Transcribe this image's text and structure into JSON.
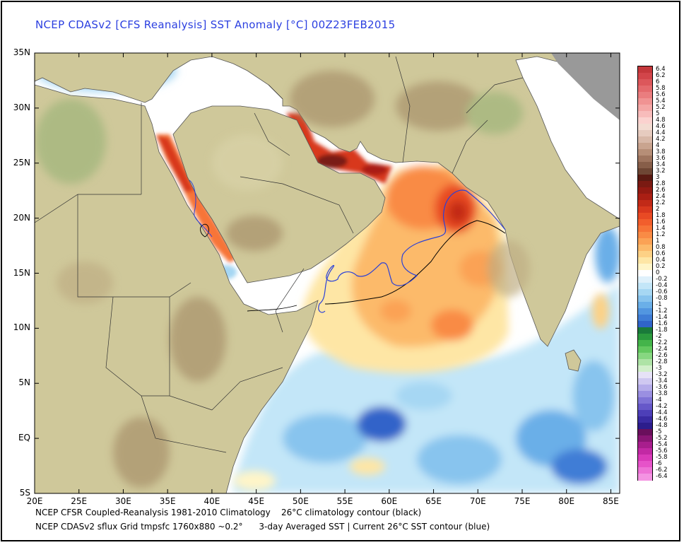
{
  "title": "NCEP CDASv2 [CFS Reanalysis] SST Anomaly [°C] 00Z23FEB2015",
  "map": {
    "lon_range": [
      20,
      86
    ],
    "lat_range": [
      -5,
      35
    ],
    "lat_ticks": [
      {
        "value": 35,
        "label": "35N"
      },
      {
        "value": 30,
        "label": "30N"
      },
      {
        "value": 25,
        "label": "25N"
      },
      {
        "value": 20,
        "label": "20N"
      },
      {
        "value": 15,
        "label": "15N"
      },
      {
        "value": 10,
        "label": "10N"
      },
      {
        "value": 5,
        "label": "5N"
      },
      {
        "value": 0,
        "label": "EQ"
      },
      {
        "value": -5,
        "label": "5S"
      }
    ],
    "lon_ticks": [
      {
        "value": 20,
        "label": "20E"
      },
      {
        "value": 25,
        "label": "25E"
      },
      {
        "value": 30,
        "label": "30E"
      },
      {
        "value": 35,
        "label": "35E"
      },
      {
        "value": 40,
        "label": "40E"
      },
      {
        "value": 45,
        "label": "45E"
      },
      {
        "value": 50,
        "label": "50E"
      },
      {
        "value": 55,
        "label": "55E"
      },
      {
        "value": 60,
        "label": "60E"
      },
      {
        "value": 65,
        "label": "65E"
      },
      {
        "value": 70,
        "label": "70E"
      },
      {
        "value": 75,
        "label": "75E"
      },
      {
        "value": 80,
        "label": "80E"
      },
      {
        "value": 85,
        "label": "85E"
      }
    ],
    "colors": {
      "land": "#cfc89a",
      "land_high": "#a8916a",
      "ocean_neutral": "#ffffff",
      "clim_contour": "#000000",
      "current_contour": "#2a40d8",
      "no_data": "#999999"
    }
  },
  "colorbar": {
    "labels": [
      "6.4",
      "6.2",
      "6",
      "5.8",
      "5.6",
      "5.4",
      "5.2",
      "5",
      "4.8",
      "4.6",
      "4.4",
      "4.2",
      "4",
      "3.8",
      "3.6",
      "3.4",
      "3.2",
      "3",
      "2.8",
      "2.6",
      "2.4",
      "2.2",
      "2",
      "1.8",
      "1.6",
      "1.4",
      "1.2",
      "1",
      "0.8",
      "0.6",
      "0.4",
      "0.2",
      "0",
      "-0.2",
      "-0.4",
      "-0.6",
      "-0.8",
      "-1",
      "-1.2",
      "-1.4",
      "-1.6",
      "-1.8",
      "-2",
      "-2.2",
      "-2.4",
      "-2.6",
      "-2.8",
      "-3",
      "-3.2",
      "-3.4",
      "-3.6",
      "-3.8",
      "-4",
      "-4.2",
      "-4.4",
      "-4.6",
      "-4.8",
      "-5",
      "-5.2",
      "-5.4",
      "-5.6",
      "-5.8",
      "-6",
      "-6.2",
      "-6.4"
    ],
    "colors": [
      "#c4373b",
      "#d2454a",
      "#dc575b",
      "#e46a6d",
      "#ea7d7f",
      "#f09393",
      "#f4a7a6",
      "#f8bcbb",
      "#fbd2cf",
      "#f3dcd2",
      "#e6cbbf",
      "#d8b8a8",
      "#c9a48f",
      "#b68e77",
      "#9f755f",
      "#875e49",
      "#6e4634",
      "#5a1a12",
      "#7a1a12",
      "#931a12",
      "#aa1f14",
      "#c22a18",
      "#d8381e",
      "#e84a24",
      "#f25e2c",
      "#f77437",
      "#f98b45",
      "#fba255",
      "#fcba6b",
      "#fdd185",
      "#fee6a5",
      "#fff5c8",
      "#ffffff",
      "#dff1fb",
      "#c3e6f8",
      "#a6d7f3",
      "#88c4ee",
      "#6aafe8",
      "#5296e0",
      "#3f7dd6",
      "#3064c9",
      "#1a7a3a",
      "#2b9a3e",
      "#44b44a",
      "#63c85f",
      "#87d781",
      "#aee3a6",
      "#d2efcb",
      "#e6e2f7",
      "#cfc8f1",
      "#b5acea",
      "#9a8fe1",
      "#7f73d6",
      "#6658c9",
      "#4d3fb8",
      "#3a2ba3",
      "#2c1d8c",
      "#6a0f5c",
      "#8a1675",
      "#a81e8d",
      "#c229a4",
      "#d93ab9",
      "#e653c9",
      "#ee72d6",
      "#f493e2"
    ]
  },
  "footnotes": [
    "NCEP CFSR Coupled-Reanalysis 1981-2010 Climatology    26°C climatology contour (black)",
    "NCEP CDASv2 sflux Grid tmpsfc 1760x880 ~0.2°      3-day Averaged SST | Current 26°C SST contour (blue)"
  ]
}
